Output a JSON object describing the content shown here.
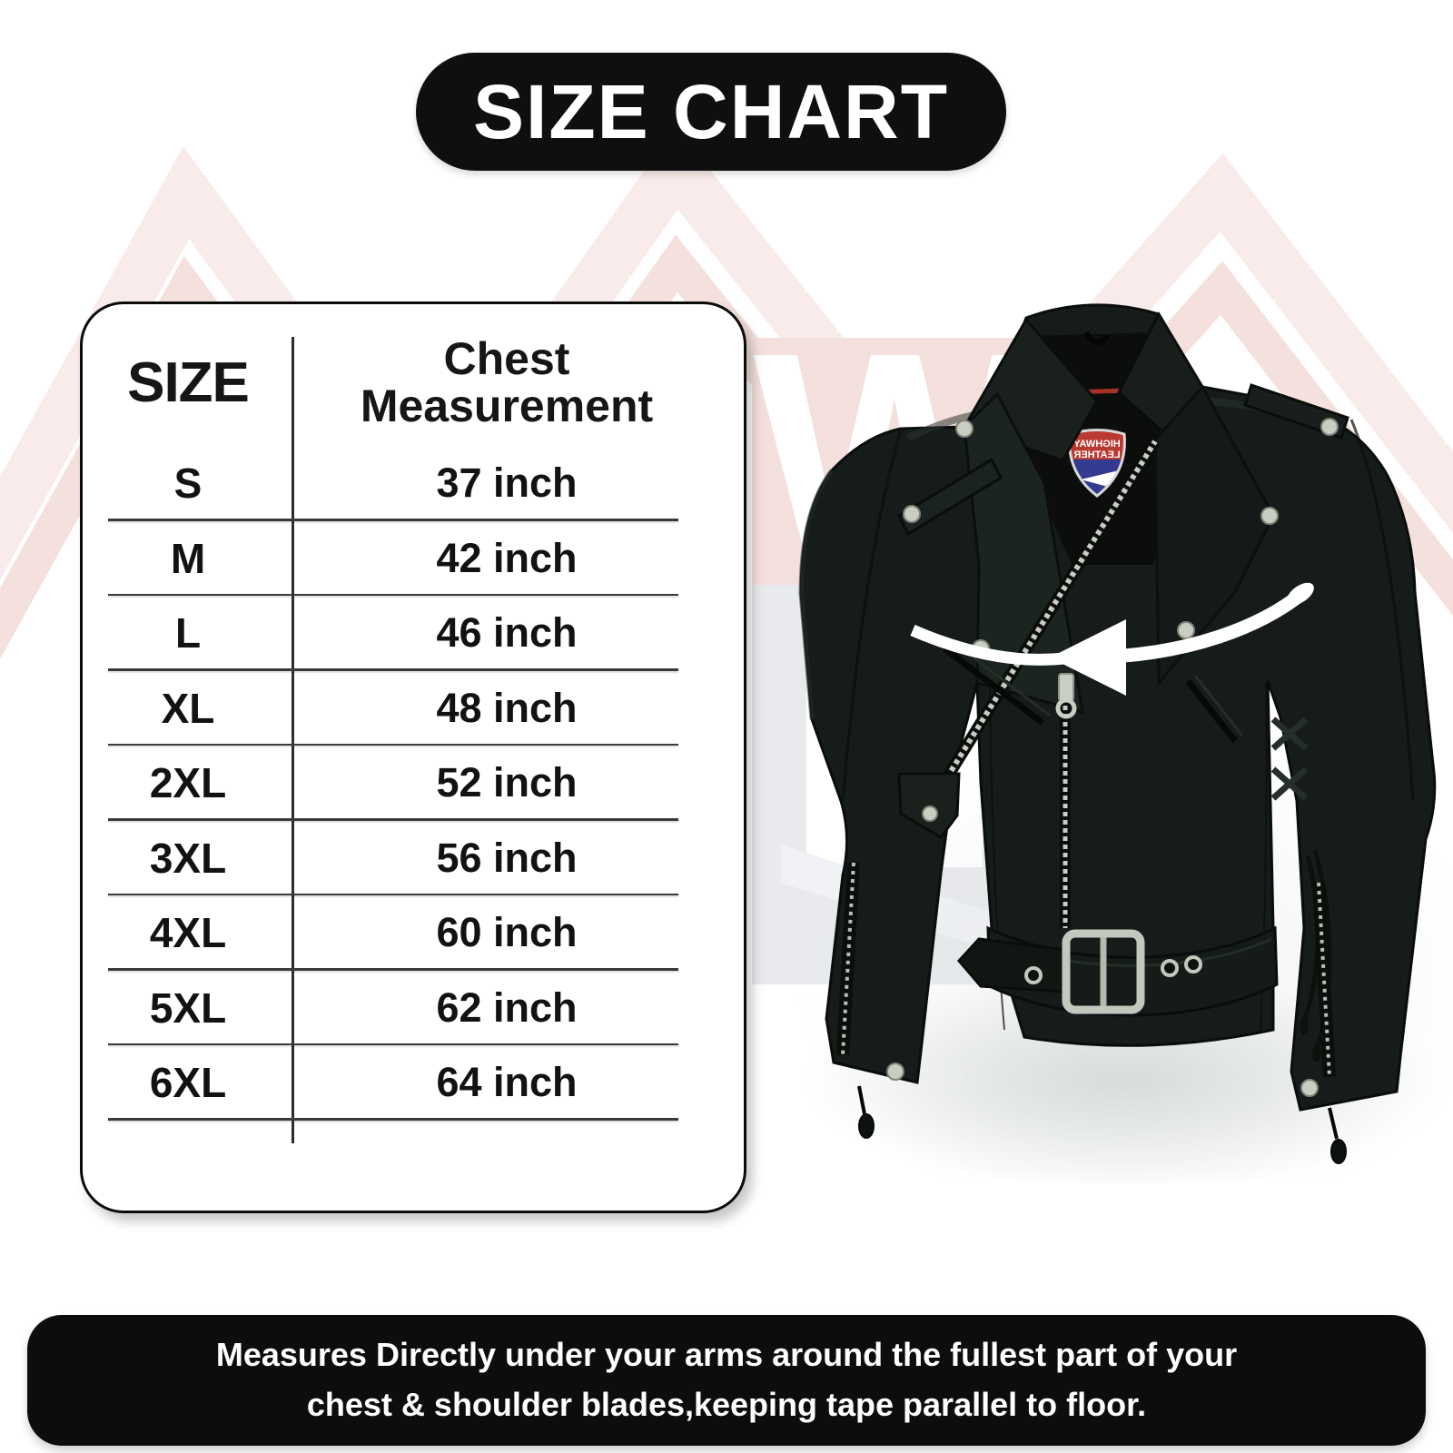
{
  "header": {
    "title": "SIZE CHART"
  },
  "size_table": {
    "columns": [
      "SIZE",
      "Chest Measurement"
    ],
    "rows": [
      {
        "size": "S",
        "chest": "37 inch"
      },
      {
        "size": "M",
        "chest": "42 inch"
      },
      {
        "size": "L",
        "chest": "46 inch"
      },
      {
        "size": "XL",
        "chest": "48 inch"
      },
      {
        "size": "2XL",
        "chest": "52 inch"
      },
      {
        "size": "3XL",
        "chest": "56 inch"
      },
      {
        "size": "4XL",
        "chest": "60 inch"
      },
      {
        "size": "5XL",
        "chest": "62 inch"
      },
      {
        "size": "6XL",
        "chest": "64 inch"
      }
    ]
  },
  "product_image": {
    "brand_patch": {
      "line1": "HIGHWAY",
      "line2": "LEATHER",
      "mirrored": true
    }
  },
  "watermark": {
    "letters": [
      "W",
      "H"
    ]
  },
  "footer": {
    "lines": [
      "Measures Directly under your arms around the fullest part of your",
      "chest & shoulder blades,keeping tape parallel to floor."
    ]
  },
  "colors": {
    "pill_black": "#0f0f0f",
    "jacket_black": "#161c19",
    "metal_silver": "#c9cdc2",
    "patch_red": "#b93a31",
    "patch_blue": "#333a8f",
    "hanger_red": "#a93226",
    "watermark_pink": "#f3dfdc",
    "watermark_gray": "#e8eaed",
    "arrow_white": "#ffffff"
  }
}
